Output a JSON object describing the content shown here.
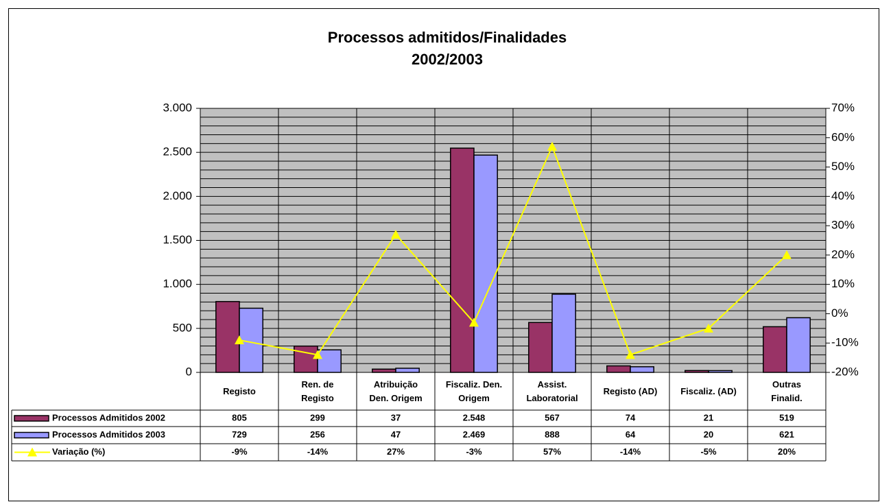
{
  "chart_data": {
    "type": "bar_line",
    "title": [
      "Processos admitidos/Finalidades",
      "2002/2003"
    ],
    "categories": [
      "Registo",
      "Ren. de\nRegisto",
      "Atribuição\nDen. Origem",
      "Fiscaliz. Den.\nOrigem",
      "Assist.\nLaboratorial",
      "Registo (AD)",
      "Fiscaliz. (AD)",
      "Outras\nFinalid."
    ],
    "series": [
      {
        "name": "Processos Admitidos  2002",
        "type": "bar",
        "color": "#993366",
        "values": [
          805,
          299,
          37,
          2548,
          567,
          74,
          21,
          519
        ],
        "value_labels": [
          "805",
          "299",
          "37",
          "2.548",
          "567",
          "74",
          "21",
          "519"
        ]
      },
      {
        "name": "Processos Admitidos  2003",
        "type": "bar",
        "color": "#9999ff",
        "values": [
          729,
          256,
          47,
          2469,
          888,
          64,
          20,
          621
        ],
        "value_labels": [
          "729",
          "256",
          "47",
          "2.469",
          "888",
          "64",
          "20",
          "621"
        ]
      },
      {
        "name": "Variação (%)",
        "type": "line",
        "axis": "y2",
        "color": "#ffff00",
        "values": [
          -9,
          -14,
          27,
          -3,
          57,
          -14,
          -5,
          20
        ],
        "value_labels": [
          "-9%",
          "-14%",
          "27%",
          "-3%",
          "57%",
          "-14%",
          "-5%",
          "20%"
        ]
      }
    ],
    "ylim": [
      0,
      3000
    ],
    "yticks": [
      0,
      500,
      {
        "value": 1000,
        "label": "1.000"
      },
      {
        "value": 1500,
        "label": "1.500"
      },
      {
        "value": 2000,
        "label": "2.000"
      },
      {
        "value": 2500,
        "label": "2.500"
      },
      {
        "value": 3000,
        "label": "3.000"
      }
    ],
    "minor_unit": 100,
    "y2lim": [
      -20,
      70
    ],
    "y2ticks": [
      {
        "value": -20,
        "label": "-20%"
      },
      {
        "value": -10,
        "label": "-10%"
      },
      {
        "value": 0,
        "label": "0%"
      },
      {
        "value": 10,
        "label": "10%"
      },
      {
        "value": 20,
        "label": "20%"
      },
      {
        "value": 30,
        "label": "30%"
      },
      {
        "value": 40,
        "label": "40%"
      },
      {
        "value": 50,
        "label": "50%"
      },
      {
        "value": 60,
        "label": "60%"
      },
      {
        "value": 70,
        "label": "70%"
      }
    ],
    "plot_background": "#c0c0c0",
    "grid": true
  }
}
